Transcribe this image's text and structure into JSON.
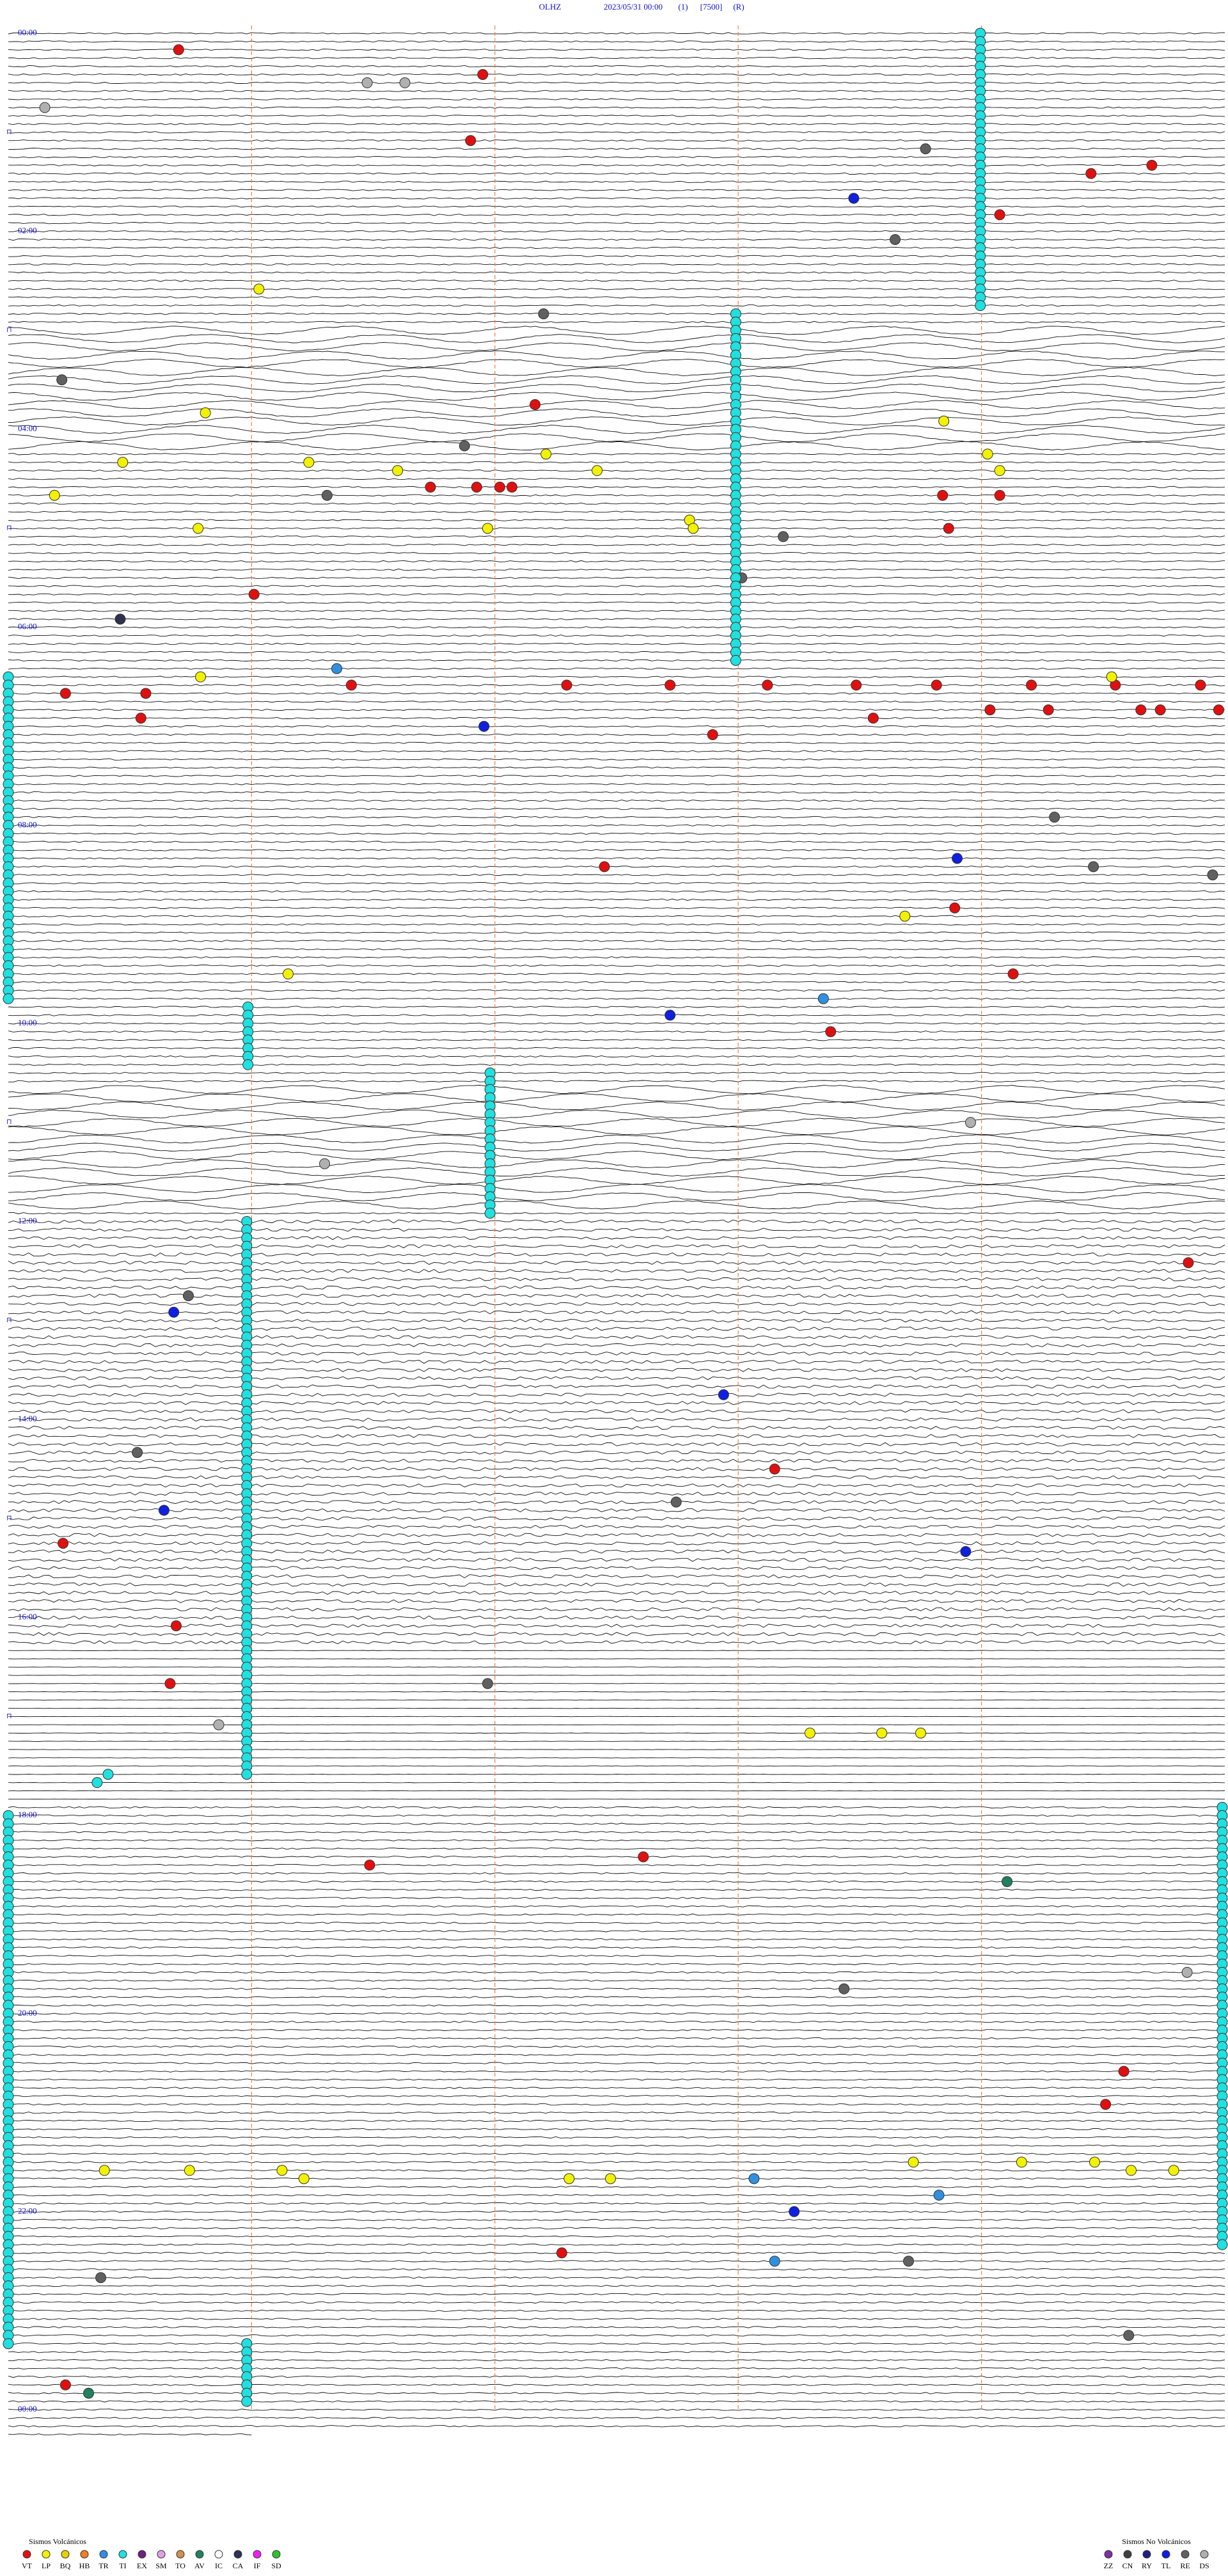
{
  "header": {
    "station": "OLHZ",
    "date": "2023/05/31 00:00",
    "channel": "(1)",
    "scale": "[7500]",
    "flag": "(R)"
  },
  "time_labels": [
    "00:00",
    "02:00",
    "04:00",
    "06:00",
    "08:00",
    "10:00",
    "12:00",
    "14:00",
    "16:00",
    "18:00",
    "20:00",
    "22:00",
    "00:00"
  ],
  "legend": {
    "volcanic": {
      "title": "Sismos Volcánicos",
      "items": [
        {
          "code": "VT",
          "color": "#e01010"
        },
        {
          "code": "LP",
          "color": "#f2f200"
        },
        {
          "code": "BQ",
          "color": "#e8d000"
        },
        {
          "code": "HB",
          "color": "#f08020"
        },
        {
          "code": "TR",
          "color": "#3090e0"
        },
        {
          "code": "TI",
          "color": "#20e0e0"
        },
        {
          "code": "EX",
          "color": "#702080"
        },
        {
          "code": "SM",
          "color": "#e0a0e0"
        },
        {
          "code": "TO",
          "color": "#d09050"
        },
        {
          "code": "AV",
          "color": "#208060"
        },
        {
          "code": "IC",
          "color": "#ffffff"
        },
        {
          "code": "CA",
          "color": "#303050"
        },
        {
          "code": "IF",
          "color": "#f020f0"
        },
        {
          "code": "SD",
          "color": "#30c030"
        }
      ]
    },
    "non_volcanic": {
      "title": "Sismos No Volcánicos",
      "items": [
        {
          "code": "ZZ",
          "color": "#8030a0"
        },
        {
          "code": "CN",
          "color": "#404040"
        },
        {
          "code": "RY",
          "color": "#202080"
        },
        {
          "code": "TL",
          "color": "#1020e0"
        },
        {
          "code": "RE",
          "color": "#606060"
        },
        {
          "code": "DS",
          "color": "#b0b0b0"
        }
      ]
    }
  },
  "events": [
    {
      "row": 2,
      "pos": 0.14,
      "type": "VT"
    },
    {
      "row": 5,
      "pos": 0.39,
      "type": "VT"
    },
    {
      "row": 13,
      "pos": 0.38,
      "type": "VT"
    },
    {
      "row": 16,
      "pos": 0.94,
      "type": "VT"
    },
    {
      "row": 17,
      "pos": 0.89,
      "type": "VT"
    },
    {
      "row": 22,
      "pos": 0.815,
      "type": "VT"
    },
    {
      "row": 20,
      "pos": 0.695,
      "type": "TL"
    },
    {
      "row": 31,
      "pos": 0.206,
      "type": "LP"
    },
    {
      "row": 46,
      "pos": 0.162,
      "type": "LP"
    },
    {
      "row": 45,
      "pos": 0.433,
      "type": "VT"
    },
    {
      "row": 52,
      "pos": 0.094,
      "type": "LP"
    },
    {
      "row": 56,
      "pos": 0.038,
      "type": "LP"
    },
    {
      "row": 60,
      "pos": 0.156,
      "type": "LP"
    },
    {
      "row": 52,
      "pos": 0.247,
      "type": "LP"
    },
    {
      "row": 53,
      "pos": 0.32,
      "type": "LP"
    },
    {
      "row": 51,
      "pos": 0.442,
      "type": "LP"
    },
    {
      "row": 53,
      "pos": 0.484,
      "type": "LP"
    },
    {
      "row": 55,
      "pos": 0.347,
      "type": "VT"
    },
    {
      "row": 55,
      "pos": 0.385,
      "type": "VT"
    },
    {
      "row": 55,
      "pos": 0.404,
      "type": "VT"
    },
    {
      "row": 55,
      "pos": 0.414,
      "type": "VT"
    },
    {
      "row": 56,
      "pos": 0.768,
      "type": "VT"
    },
    {
      "row": 60,
      "pos": 0.773,
      "type": "VT"
    },
    {
      "row": 56,
      "pos": 0.815,
      "type": "VT"
    },
    {
      "row": 47,
      "pos": 0.769,
      "type": "LP"
    },
    {
      "row": 51,
      "pos": 0.805,
      "type": "LP"
    },
    {
      "row": 53,
      "pos": 0.815,
      "type": "LP"
    },
    {
      "row": 59,
      "pos": 0.56,
      "type": "LP"
    },
    {
      "row": 60,
      "pos": 0.563,
      "type": "LP"
    },
    {
      "row": 60,
      "pos": 0.394,
      "type": "LP"
    },
    {
      "row": 68,
      "pos": 0.202,
      "type": "VT"
    },
    {
      "row": 79,
      "pos": 0.282,
      "type": "VT"
    },
    {
      "row": 79,
      "pos": 0.459,
      "type": "VT"
    },
    {
      "row": 79,
      "pos": 0.544,
      "type": "VT"
    },
    {
      "row": 79,
      "pos": 0.624,
      "type": "VT"
    },
    {
      "row": 79,
      "pos": 0.697,
      "type": "VT"
    },
    {
      "row": 79,
      "pos": 0.763,
      "type": "VT"
    },
    {
      "row": 79,
      "pos": 0.841,
      "type": "VT"
    },
    {
      "row": 79,
      "pos": 0.91,
      "type": "VT"
    },
    {
      "row": 79,
      "pos": 0.98,
      "type": "VT"
    },
    {
      "row": 80,
      "pos": 0.047,
      "type": "VT"
    },
    {
      "row": 80,
      "pos": 0.113,
      "type": "VT"
    },
    {
      "row": 83,
      "pos": 0.109,
      "type": "VT"
    },
    {
      "row": 82,
      "pos": 0.931,
      "type": "VT"
    },
    {
      "row": 82,
      "pos": 0.947,
      "type": "VT"
    },
    {
      "row": 82,
      "pos": 0.995,
      "type": "VT"
    },
    {
      "row": 82,
      "pos": 0.807,
      "type": "VT"
    },
    {
      "row": 82,
      "pos": 0.855,
      "type": "VT"
    },
    {
      "row": 83,
      "pos": 0.711,
      "type": "VT"
    },
    {
      "row": 85,
      "pos": 0.579,
      "type": "VT"
    },
    {
      "row": 84,
      "pos": 0.391,
      "type": "TL"
    },
    {
      "row": 78,
      "pos": 0.158,
      "type": "LP"
    },
    {
      "row": 78,
      "pos": 0.907,
      "type": "LP"
    },
    {
      "row": 77,
      "pos": 0.27,
      "type": "TR"
    },
    {
      "row": 101,
      "pos": 0.49,
      "type": "VT"
    },
    {
      "row": 107,
      "pos": 0.737,
      "type": "LP"
    },
    {
      "row": 106,
      "pos": 0.778,
      "type": "VT"
    },
    {
      "row": 100,
      "pos": 0.78,
      "type": "TL"
    },
    {
      "row": 114,
      "pos": 0.23,
      "type": "LP"
    },
    {
      "row": 114,
      "pos": 0.826,
      "type": "VT"
    },
    {
      "row": 119,
      "pos": 0.544,
      "type": "TL"
    },
    {
      "row": 121,
      "pos": 0.676,
      "type": "VT"
    },
    {
      "row": 117,
      "pos": 0.67,
      "type": "TR"
    },
    {
      "row": 149,
      "pos": 0.97,
      "type": "VT"
    },
    {
      "row": 155,
      "pos": 0.136,
      "type": "TL"
    },
    {
      "row": 165,
      "pos": 0.588,
      "type": "TL"
    },
    {
      "row": 174,
      "pos": 0.63,
      "type": "VT"
    },
    {
      "row": 179,
      "pos": 0.128,
      "type": "TL"
    },
    {
      "row": 183,
      "pos": 0.045,
      "type": "VT"
    },
    {
      "row": 184,
      "pos": 0.787,
      "type": "TL"
    },
    {
      "row": 193,
      "pos": 0.138,
      "type": "VT"
    },
    {
      "row": 200,
      "pos": 0.133,
      "type": "VT"
    },
    {
      "row": 206,
      "pos": 0.659,
      "type": "LP"
    },
    {
      "row": 206,
      "pos": 0.718,
      "type": "LP"
    },
    {
      "row": 206,
      "pos": 0.75,
      "type": "LP"
    },
    {
      "row": 212,
      "pos": 0.073,
      "type": "TI"
    },
    {
      "row": 211,
      "pos": 0.082,
      "type": "TI"
    },
    {
      "row": 222,
      "pos": 0.297,
      "type": "VT"
    },
    {
      "row": 221,
      "pos": 0.522,
      "type": "VT"
    },
    {
      "row": 224,
      "pos": 0.821,
      "type": "AV"
    },
    {
      "row": 247,
      "pos": 0.917,
      "type": "VT"
    },
    {
      "row": 251,
      "pos": 0.902,
      "type": "VT"
    },
    {
      "row": 259,
      "pos": 0.079,
      "type": "LP"
    },
    {
      "row": 259,
      "pos": 0.149,
      "type": "LP"
    },
    {
      "row": 259,
      "pos": 0.225,
      "type": "LP"
    },
    {
      "row": 260,
      "pos": 0.243,
      "type": "LP"
    },
    {
      "row": 260,
      "pos": 0.461,
      "type": "LP"
    },
    {
      "row": 260,
      "pos": 0.495,
      "type": "LP"
    },
    {
      "row": 258,
      "pos": 0.744,
      "type": "LP"
    },
    {
      "row": 258,
      "pos": 0.833,
      "type": "LP"
    },
    {
      "row": 258,
      "pos": 0.893,
      "type": "LP"
    },
    {
      "row": 259,
      "pos": 0.923,
      "type": "LP"
    },
    {
      "row": 259,
      "pos": 0.958,
      "type": "LP"
    },
    {
      "row": 264,
      "pos": 0.646,
      "type": "TL"
    },
    {
      "row": 260,
      "pos": 0.613,
      "type": "TR"
    },
    {
      "row": 262,
      "pos": 0.765,
      "type": "TR"
    },
    {
      "row": 270,
      "pos": 0.63,
      "type": "TR"
    },
    {
      "row": 269,
      "pos": 0.455,
      "type": "VT"
    },
    {
      "row": 285,
      "pos": 0.047,
      "type": "VT"
    },
    {
      "row": 286,
      "pos": 0.066,
      "type": "AV"
    },
    {
      "row": 6,
      "pos": 0.295,
      "type": "DS"
    },
    {
      "row": 6,
      "pos": 0.326,
      "type": "DS"
    },
    {
      "row": 9,
      "pos": 0.03,
      "type": "DS"
    },
    {
      "row": 14,
      "pos": 0.754,
      "type": "RE"
    },
    {
      "row": 25,
      "pos": 0.729,
      "type": "RE"
    },
    {
      "row": 34,
      "pos": 0.44,
      "type": "RE"
    },
    {
      "row": 42,
      "pos": 0.044,
      "type": "RE"
    },
    {
      "row": 50,
      "pos": 0.375,
      "type": "RE"
    },
    {
      "row": 56,
      "pos": 0.262,
      "type": "RE"
    },
    {
      "row": 61,
      "pos": 0.637,
      "type": "RE"
    },
    {
      "row": 66,
      "pos": 0.603,
      "type": "RE"
    },
    {
      "row": 71,
      "pos": 0.092,
      "type": "CA"
    },
    {
      "row": 95,
      "pos": 0.86,
      "type": "RE"
    },
    {
      "row": 101,
      "pos": 0.892,
      "type": "RE"
    },
    {
      "row": 102,
      "pos": 0.99,
      "type": "RE"
    },
    {
      "row": 132,
      "pos": 0.791,
      "type": "DS"
    },
    {
      "row": 137,
      "pos": 0.26,
      "type": "DS"
    },
    {
      "row": 153,
      "pos": 0.148,
      "type": "RE"
    },
    {
      "row": 172,
      "pos": 0.106,
      "type": "RE"
    },
    {
      "row": 178,
      "pos": 0.549,
      "type": "RE"
    },
    {
      "row": 200,
      "pos": 0.394,
      "type": "RE"
    },
    {
      "row": 205,
      "pos": 0.173,
      "type": "DS"
    },
    {
      "row": 235,
      "pos": 0.969,
      "type": "DS"
    },
    {
      "row": 237,
      "pos": 0.687,
      "type": "RE"
    },
    {
      "row": 272,
      "pos": 0.076,
      "type": "RE"
    },
    {
      "row": 270,
      "pos": 0.74,
      "type": "RE"
    },
    {
      "row": 279,
      "pos": 0.921,
      "type": "RE"
    }
  ],
  "runs": [
    {
      "pos": 0.799,
      "rows": [
        0,
        33
      ],
      "type": "TI"
    },
    {
      "pos": 0.598,
      "rows": [
        34,
        76
      ],
      "type": "TI"
    },
    {
      "pos": 0.0,
      "rows": [
        78,
        117
      ],
      "type": "TI"
    },
    {
      "pos": 0.197,
      "rows": [
        118,
        125
      ],
      "type": "TI"
    },
    {
      "pos": 0.396,
      "rows": [
        126,
        143
      ],
      "type": "TI"
    },
    {
      "pos": 0.196,
      "rows": [
        144,
        211
      ],
      "type": "TI"
    },
    {
      "pos": 1.0,
      "rows": [
        215,
        268
      ],
      "type": "TI"
    },
    {
      "pos": 0.0,
      "rows": [
        216,
        280
      ],
      "type": "TI"
    },
    {
      "pos": 0.196,
      "rows": [
        280,
        287
      ],
      "type": "TI"
    }
  ]
}
